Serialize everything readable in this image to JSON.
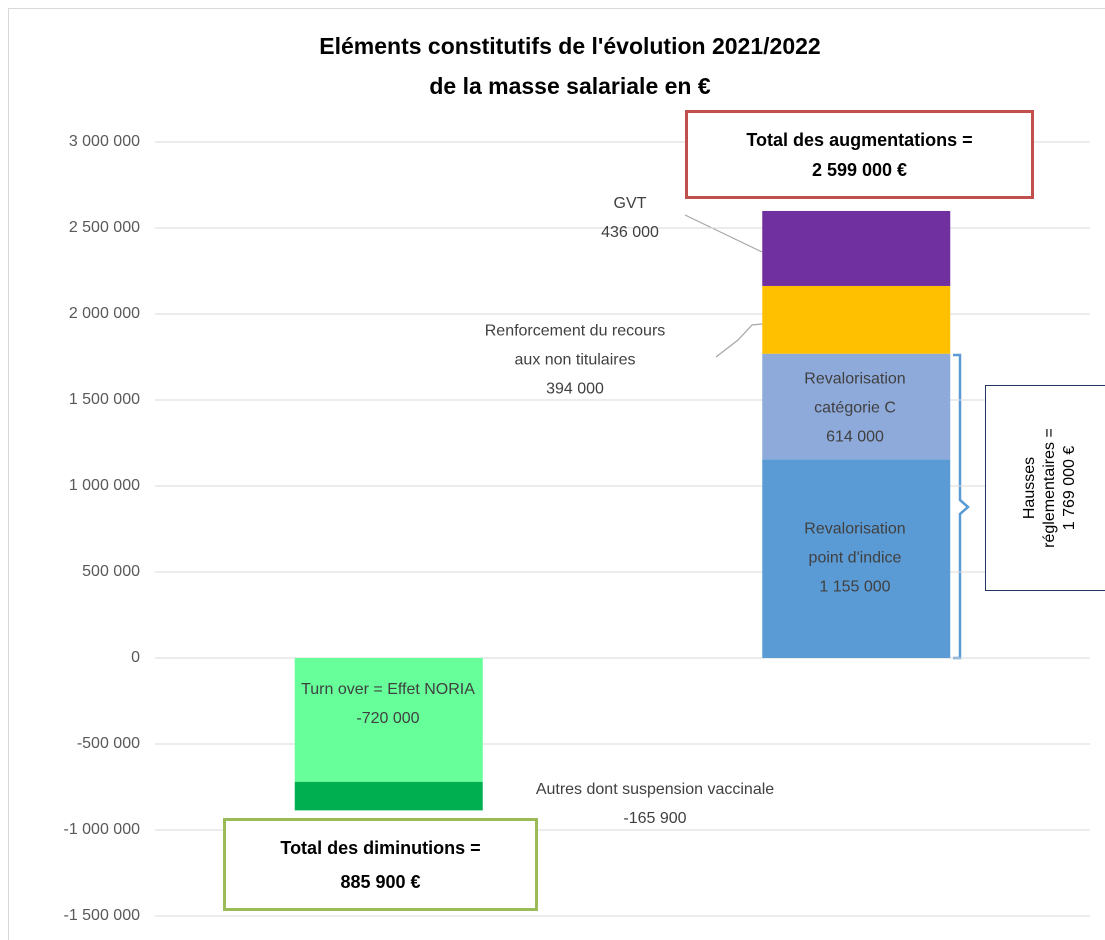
{
  "chart_data": {
    "type": "stacked_bar",
    "title": "Eléments constitutifs de l'évolution 2021/2022\nde la masse salariale en €",
    "categories": [
      null,
      null
    ],
    "series": [
      {
        "name": "Turn over = Effet NORIA",
        "color": "#66ff99",
        "values": [
          -720000,
          null
        ],
        "value_labels": [
          "-720 000",
          null
        ]
      },
      {
        "name": "Autres dont suspension vaccinale",
        "color": "#00b050",
        "values": [
          -165900,
          null
        ],
        "value_labels": [
          "-165 900",
          null
        ]
      },
      {
        "name": "Revalorisation\npoint d'indice",
        "color": "#5b9bd5",
        "values": [
          null,
          1155000
        ],
        "value_labels": [
          null,
          "1 155 000"
        ]
      },
      {
        "name": "Revalorisation\ncatégorie C",
        "color": "#8eaadb",
        "values": [
          null,
          614000
        ],
        "value_labels": [
          null,
          "614 000"
        ]
      },
      {
        "name": "Renforcement du recours\naux non titulaires",
        "color": "#ffc000",
        "values": [
          null,
          394000
        ],
        "value_labels": [
          null,
          "394 000"
        ]
      },
      {
        "name": "GVT",
        "color": "#7030a0",
        "values": [
          null,
          436000
        ],
        "value_labels": [
          null,
          "436 000"
        ]
      }
    ],
    "ylim": [
      -1500000,
      3000000
    ],
    "yticks": [
      {
        "value": -1500000,
        "label": "-1 500 000"
      },
      {
        "value": -1000000,
        "label": "-1 000 000"
      },
      {
        "value": -500000,
        "label": "-500 000"
      },
      0,
      {
        "value": 500000,
        "label": "500 000"
      },
      {
        "value": 1000000,
        "label": "1 000 000"
      },
      {
        "value": 1500000,
        "label": "1 500 000"
      },
      {
        "value": 2000000,
        "label": "2 000 000"
      },
      {
        "value": 2500000,
        "label": "2 500 000"
      },
      {
        "value": 3000000,
        "label": "3 000 000"
      }
    ],
    "grid": true,
    "annotations": [
      {
        "text": "Total des augmentations =\n2 599 000 €"
      },
      {
        "text": "Total des diminutions =\n885 900 €"
      },
      {
        "text": "Hausses\nréglementaires =\n1 769 000 €"
      }
    ]
  }
}
